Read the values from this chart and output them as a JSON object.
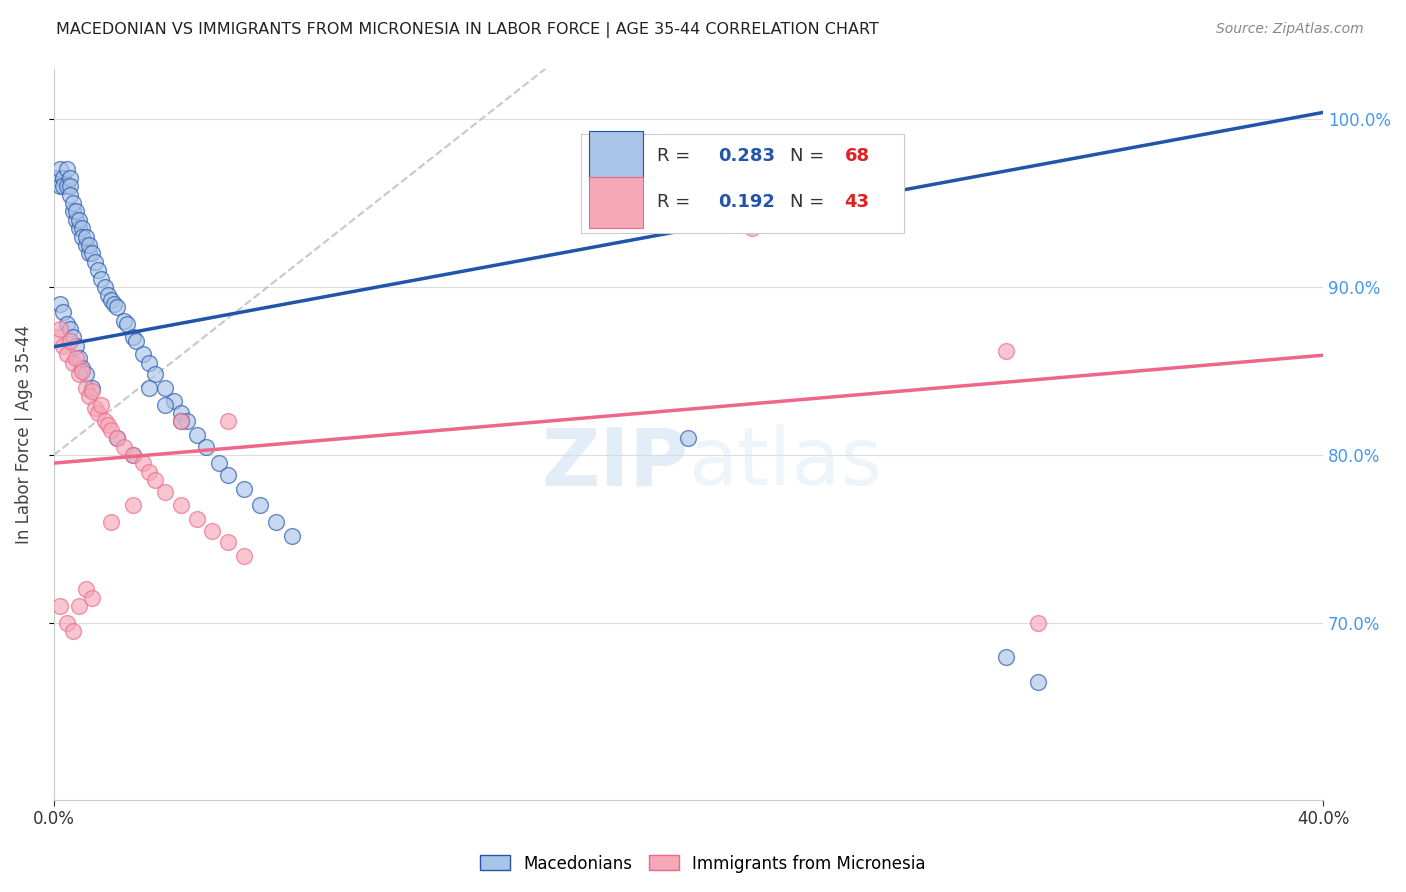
{
  "title": "MACEDONIAN VS IMMIGRANTS FROM MICRONESIA IN LABOR FORCE | AGE 35-44 CORRELATION CHART",
  "source": "Source: ZipAtlas.com",
  "ylabel": "In Labor Force | Age 35-44",
  "legend_label1": "Macedonians",
  "legend_label2": "Immigrants from Micronesia",
  "r1": 0.283,
  "n1": 68,
  "r2": 0.192,
  "n2": 43,
  "color1": "#aac4e8",
  "color2": "#f4a8b8",
  "trendline1_color": "#2255aa",
  "trendline2_color": "#ee6688",
  "right_axis_color": "#4499ee",
  "xlim": [
    0.0,
    0.4
  ],
  "ylim": [
    0.595,
    1.03
  ],
  "xtick_labels": [
    "0.0%",
    "40.0%"
  ],
  "xtick_positions": [
    0.0,
    0.4
  ],
  "yticks_right": [
    0.7,
    0.8,
    0.9,
    1.0
  ],
  "background_color": "#ffffff",
  "grid_color": "#dddddd",
  "blue_x": [
    0.001,
    0.002,
    0.002,
    0.003,
    0.003,
    0.004,
    0.004,
    0.005,
    0.005,
    0.005,
    0.006,
    0.006,
    0.007,
    0.007,
    0.008,
    0.008,
    0.009,
    0.009,
    0.01,
    0.01,
    0.011,
    0.011,
    0.012,
    0.013,
    0.014,
    0.015,
    0.016,
    0.017,
    0.018,
    0.019,
    0.02,
    0.022,
    0.023,
    0.025,
    0.026,
    0.028,
    0.03,
    0.032,
    0.035,
    0.038,
    0.04,
    0.042,
    0.045,
    0.048,
    0.052,
    0.055,
    0.06,
    0.065,
    0.07,
    0.075,
    0.002,
    0.003,
    0.004,
    0.005,
    0.006,
    0.007,
    0.008,
    0.009,
    0.01,
    0.012,
    0.02,
    0.025,
    0.03,
    0.035,
    0.04,
    0.2,
    0.3,
    0.31
  ],
  "blue_y": [
    0.965,
    0.97,
    0.96,
    0.965,
    0.96,
    0.97,
    0.96,
    0.965,
    0.96,
    0.955,
    0.945,
    0.95,
    0.94,
    0.945,
    0.935,
    0.94,
    0.935,
    0.93,
    0.925,
    0.93,
    0.92,
    0.925,
    0.92,
    0.915,
    0.91,
    0.905,
    0.9,
    0.895,
    0.892,
    0.89,
    0.888,
    0.88,
    0.878,
    0.87,
    0.868,
    0.86,
    0.855,
    0.848,
    0.84,
    0.832,
    0.825,
    0.82,
    0.812,
    0.805,
    0.795,
    0.788,
    0.78,
    0.77,
    0.76,
    0.752,
    0.89,
    0.885,
    0.878,
    0.875,
    0.87,
    0.865,
    0.858,
    0.852,
    0.848,
    0.84,
    0.81,
    0.8,
    0.84,
    0.83,
    0.82,
    0.81,
    0.68,
    0.665
  ],
  "pink_x": [
    0.001,
    0.002,
    0.003,
    0.004,
    0.005,
    0.006,
    0.007,
    0.008,
    0.009,
    0.01,
    0.011,
    0.012,
    0.013,
    0.014,
    0.015,
    0.016,
    0.017,
    0.018,
    0.02,
    0.022,
    0.025,
    0.028,
    0.03,
    0.032,
    0.035,
    0.04,
    0.045,
    0.05,
    0.055,
    0.06,
    0.002,
    0.004,
    0.006,
    0.008,
    0.01,
    0.012,
    0.018,
    0.025,
    0.04,
    0.055,
    0.22,
    0.3,
    0.31
  ],
  "pink_y": [
    0.87,
    0.875,
    0.865,
    0.86,
    0.868,
    0.855,
    0.858,
    0.848,
    0.85,
    0.84,
    0.835,
    0.838,
    0.828,
    0.825,
    0.83,
    0.82,
    0.818,
    0.815,
    0.81,
    0.805,
    0.8,
    0.795,
    0.79,
    0.785,
    0.778,
    0.77,
    0.762,
    0.755,
    0.748,
    0.74,
    0.71,
    0.7,
    0.695,
    0.71,
    0.72,
    0.715,
    0.76,
    0.77,
    0.82,
    0.82,
    0.935,
    0.862,
    0.7
  ],
  "refline_x": [
    0.0,
    0.155
  ],
  "refline_y": [
    0.8,
    1.03
  ]
}
